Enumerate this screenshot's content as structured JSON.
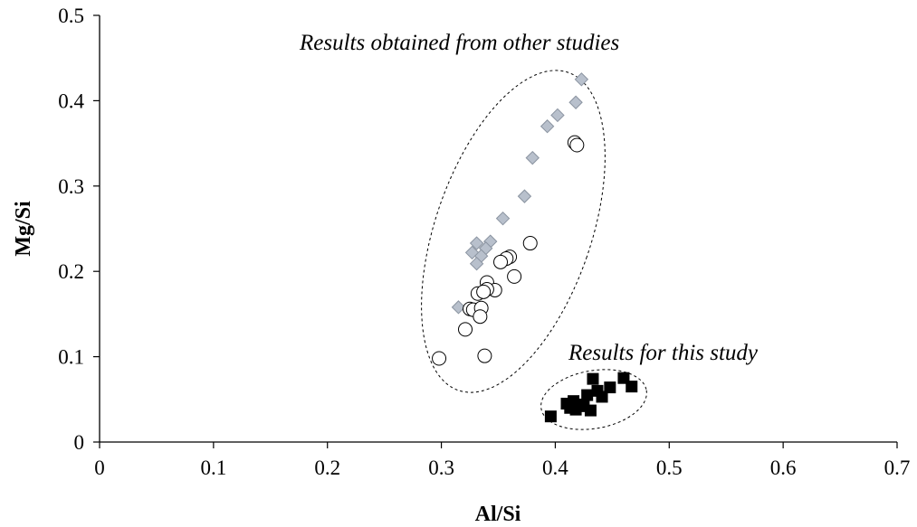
{
  "chart_data": {
    "type": "scatter",
    "title": "",
    "xlabel": "Al/Si",
    "ylabel": "Mg/Si",
    "xlim": [
      0,
      0.7
    ],
    "ylim": [
      0,
      0.5
    ],
    "x_ticks": [
      "0",
      "0.1",
      "0.2",
      "0.3",
      "0.4",
      "0.5",
      "0.6",
      "0.7"
    ],
    "y_ticks": [
      "0",
      "0.1",
      "0.2",
      "0.3",
      "0.4",
      "0.5"
    ],
    "grid": false,
    "legend": "none",
    "annotations": {
      "other_studies": "Results obtained from other studies",
      "this_study": "Results for this study"
    },
    "series": [
      {
        "marker": "diamond",
        "color": "#b8c0cc",
        "edge_color": "#8a93a0",
        "points": [
          [
            0.423,
            0.425
          ],
          [
            0.418,
            0.398
          ],
          [
            0.402,
            0.383
          ],
          [
            0.393,
            0.37
          ],
          [
            0.38,
            0.333
          ],
          [
            0.373,
            0.288
          ],
          [
            0.354,
            0.262
          ],
          [
            0.343,
            0.235
          ],
          [
            0.331,
            0.233
          ],
          [
            0.327,
            0.222
          ],
          [
            0.339,
            0.227
          ],
          [
            0.335,
            0.218
          ],
          [
            0.331,
            0.209
          ],
          [
            0.315,
            0.158
          ]
        ]
      },
      {
        "marker": "circle-open",
        "color": "#ffffff",
        "edge_color": "#000000",
        "points": [
          [
            0.417,
            0.351
          ],
          [
            0.419,
            0.348
          ],
          [
            0.378,
            0.233
          ],
          [
            0.36,
            0.217
          ],
          [
            0.357,
            0.215
          ],
          [
            0.352,
            0.211
          ],
          [
            0.364,
            0.194
          ],
          [
            0.34,
            0.187
          ],
          [
            0.347,
            0.178
          ],
          [
            0.34,
            0.179
          ],
          [
            0.332,
            0.174
          ],
          [
            0.337,
            0.176
          ],
          [
            0.325,
            0.156
          ],
          [
            0.328,
            0.155
          ],
          [
            0.335,
            0.157
          ],
          [
            0.334,
            0.147
          ],
          [
            0.321,
            0.132
          ],
          [
            0.298,
            0.098
          ],
          [
            0.338,
            0.101
          ]
        ]
      },
      {
        "marker": "square-filled",
        "color": "#000000",
        "edge_color": "#000000",
        "points": [
          [
            0.396,
            0.03
          ],
          [
            0.41,
            0.045
          ],
          [
            0.413,
            0.04
          ],
          [
            0.416,
            0.048
          ],
          [
            0.418,
            0.038
          ],
          [
            0.421,
            0.042
          ],
          [
            0.425,
            0.044
          ],
          [
            0.428,
            0.055
          ],
          [
            0.431,
            0.037
          ],
          [
            0.433,
            0.074
          ],
          [
            0.437,
            0.06
          ],
          [
            0.441,
            0.053
          ],
          [
            0.448,
            0.064
          ],
          [
            0.46,
            0.075
          ],
          [
            0.467,
            0.065
          ]
        ]
      }
    ]
  }
}
